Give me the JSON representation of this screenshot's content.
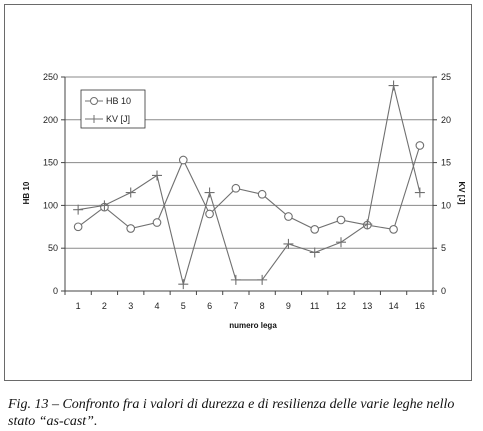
{
  "caption": "Fig. 13 – Confronto fra i valori di durezza e di resilienza delle varie leghe nello stato “as-cast”.",
  "chart_data": {
    "type": "line",
    "categories": [
      "1",
      "2",
      "3",
      "4",
      "5",
      "6",
      "7",
      "8",
      "9",
      "11",
      "12",
      "13",
      "14",
      "16"
    ],
    "xlabel": "numero lega",
    "ylabel": "HB 10",
    "y2label": "KV [J]",
    "ylim": [
      0,
      250
    ],
    "y2lim": [
      0,
      25
    ],
    "yticks": [
      "0",
      "50",
      "100",
      "150",
      "200",
      "250"
    ],
    "y2ticks": [
      "0",
      "5",
      "10",
      "15",
      "20",
      "25"
    ],
    "grid": true,
    "legend_position": "top-left",
    "series": [
      {
        "name": "HB 10",
        "axis": "left",
        "marker": "circle",
        "values": [
          75,
          98,
          73,
          80,
          153,
          90,
          120,
          113,
          87,
          72,
          83,
          77,
          72,
          170
        ]
      },
      {
        "name": "KV [J]",
        "axis": "right",
        "marker": "plus",
        "values": [
          9.5,
          10,
          11.5,
          13.5,
          0.8,
          11.5,
          1.3,
          1.3,
          5.5,
          4.5,
          5.7,
          7.8,
          24,
          11.5
        ]
      }
    ],
    "colors": {
      "line": "#707070",
      "grid": "#8a8a8a",
      "axis": "#444444"
    }
  }
}
